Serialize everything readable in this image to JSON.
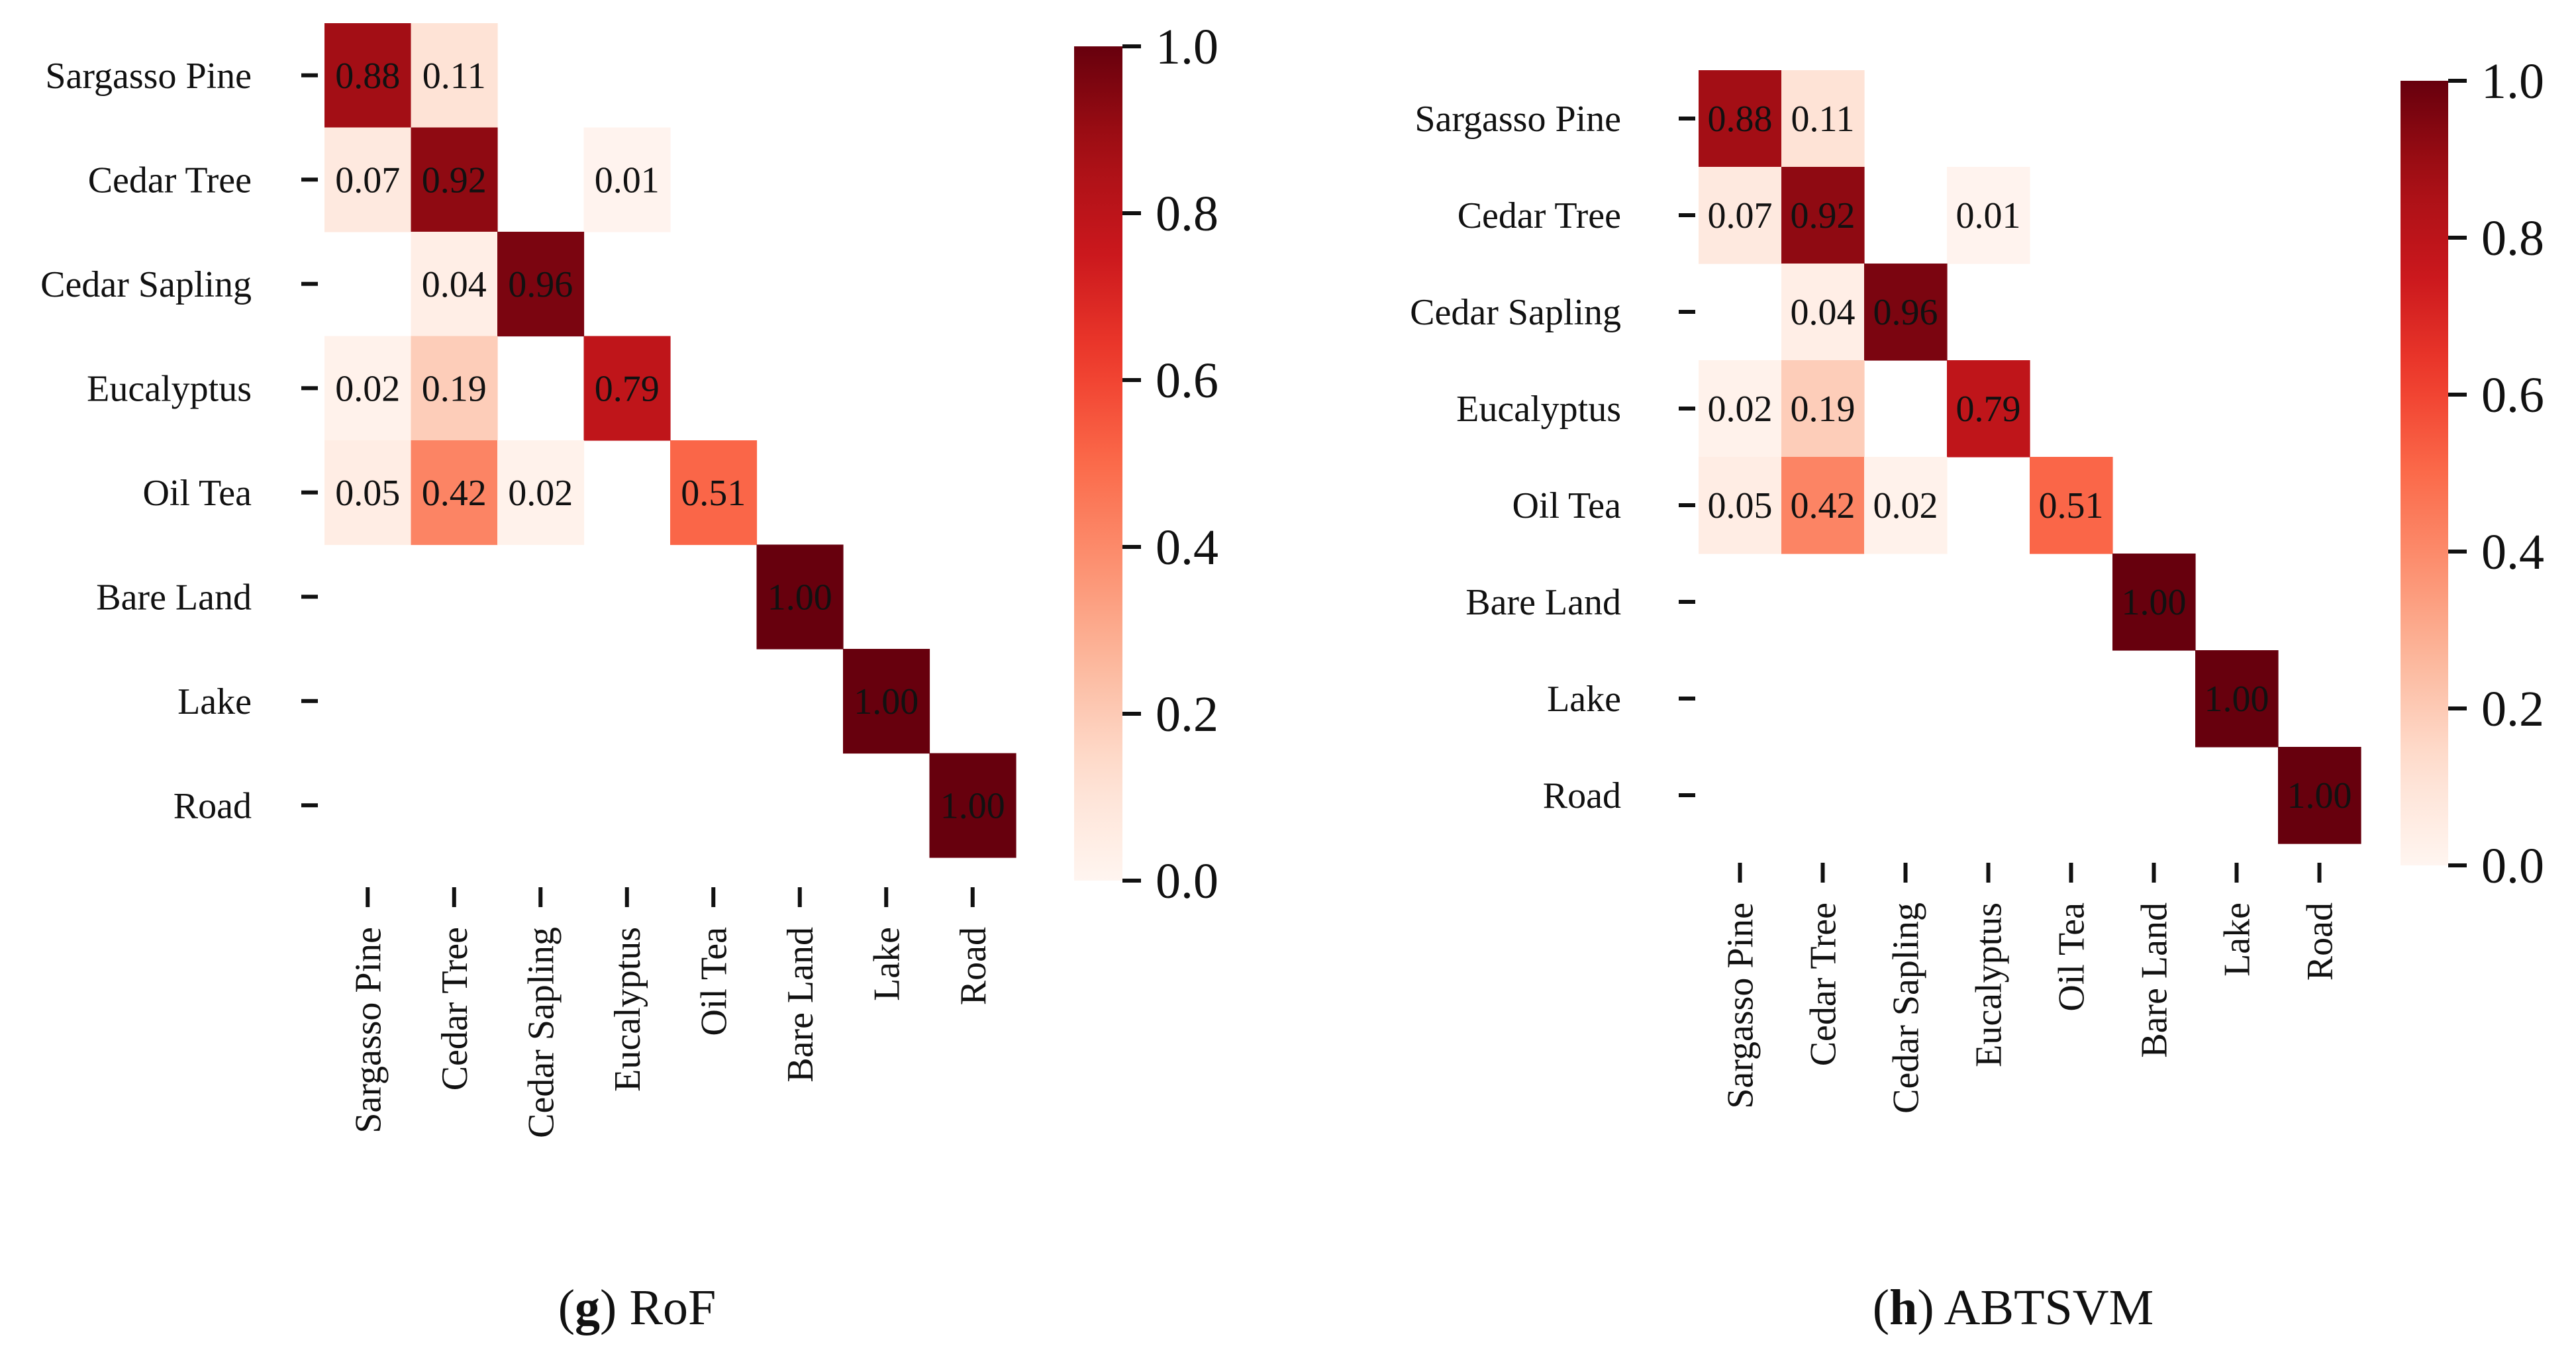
{
  "chart_data": [
    {
      "type": "heatmap",
      "panel": "g",
      "title": "RoF",
      "caption_letter": "g",
      "classes": [
        "Sargasso Pine",
        "Cedar Tree",
        "Cedar Sapling",
        "Eucalyptus",
        "Oil Tea",
        "Bare Land",
        "Lake",
        "Road"
      ],
      "colorbar": {
        "min": 0.0,
        "max": 1.0,
        "ticks": [
          "0.0",
          "0.2",
          "0.4",
          "0.6",
          "0.8",
          "1.0"
        ]
      },
      "cells": [
        {
          "row": 0,
          "col": 0,
          "value": 0.88,
          "label": "0.88"
        },
        {
          "row": 0,
          "col": 1,
          "value": 0.11,
          "label": "0.11"
        },
        {
          "row": 1,
          "col": 0,
          "value": 0.07,
          "label": "0.07"
        },
        {
          "row": 1,
          "col": 1,
          "value": 0.92,
          "label": "0.92"
        },
        {
          "row": 1,
          "col": 3,
          "value": 0.01,
          "label": "0.01"
        },
        {
          "row": 2,
          "col": 1,
          "value": 0.04,
          "label": "0.04"
        },
        {
          "row": 2,
          "col": 2,
          "value": 0.96,
          "label": "0.96"
        },
        {
          "row": 3,
          "col": 0,
          "value": 0.02,
          "label": "0.02"
        },
        {
          "row": 3,
          "col": 1,
          "value": 0.19,
          "label": "0.19"
        },
        {
          "row": 3,
          "col": 3,
          "value": 0.79,
          "label": "0.79"
        },
        {
          "row": 4,
          "col": 0,
          "value": 0.05,
          "label": "0.05"
        },
        {
          "row": 4,
          "col": 1,
          "value": 0.42,
          "label": "0.42"
        },
        {
          "row": 4,
          "col": 2,
          "value": 0.02,
          "label": "0.02"
        },
        {
          "row": 4,
          "col": 4,
          "value": 0.51,
          "label": "0.51"
        },
        {
          "row": 5,
          "col": 5,
          "value": 1.0,
          "label": "1.00"
        },
        {
          "row": 6,
          "col": 6,
          "value": 1.0,
          "label": "1.00"
        },
        {
          "row": 7,
          "col": 7,
          "value": 1.0,
          "label": "1.00"
        }
      ]
    },
    {
      "type": "heatmap",
      "panel": "h",
      "title": "ABTSVM",
      "caption_letter": "h",
      "classes": [
        "Sargasso Pine",
        "Cedar Tree",
        "Cedar Sapling",
        "Eucalyptus",
        "Oil Tea",
        "Bare Land",
        "Lake",
        "Road"
      ],
      "colorbar": {
        "min": 0.0,
        "max": 1.0,
        "ticks": [
          "0.0",
          "0.2",
          "0.4",
          "0.6",
          "0.8",
          "1.0"
        ]
      },
      "cells": [
        {
          "row": 0,
          "col": 0,
          "value": 0.88,
          "label": "0.88"
        },
        {
          "row": 0,
          "col": 1,
          "value": 0.11,
          "label": "0.11"
        },
        {
          "row": 1,
          "col": 0,
          "value": 0.07,
          "label": "0.07"
        },
        {
          "row": 1,
          "col": 1,
          "value": 0.92,
          "label": "0.92"
        },
        {
          "row": 1,
          "col": 3,
          "value": 0.01,
          "label": "0.01"
        },
        {
          "row": 2,
          "col": 1,
          "value": 0.04,
          "label": "0.04"
        },
        {
          "row": 2,
          "col": 2,
          "value": 0.96,
          "label": "0.96"
        },
        {
          "row": 3,
          "col": 0,
          "value": 0.02,
          "label": "0.02"
        },
        {
          "row": 3,
          "col": 1,
          "value": 0.19,
          "label": "0.19"
        },
        {
          "row": 3,
          "col": 3,
          "value": 0.79,
          "label": "0.79"
        },
        {
          "row": 4,
          "col": 0,
          "value": 0.05,
          "label": "0.05"
        },
        {
          "row": 4,
          "col": 1,
          "value": 0.42,
          "label": "0.42"
        },
        {
          "row": 4,
          "col": 2,
          "value": 0.02,
          "label": "0.02"
        },
        {
          "row": 4,
          "col": 4,
          "value": 0.51,
          "label": "0.51"
        },
        {
          "row": 5,
          "col": 5,
          "value": 1.0,
          "label": "1.00"
        },
        {
          "row": 6,
          "col": 6,
          "value": 1.0,
          "label": "1.00"
        },
        {
          "row": 7,
          "col": 7,
          "value": 1.0,
          "label": "1.00"
        }
      ]
    }
  ],
  "colors": {
    "scale": [
      "#fff5f0",
      "#fee0d2",
      "#fcbba1",
      "#fc9272",
      "#fb6a4a",
      "#ef3b2c",
      "#cb181d",
      "#a50f15",
      "#67000d"
    ],
    "text_dark": "#111111",
    "text_light": "#ffffff"
  }
}
